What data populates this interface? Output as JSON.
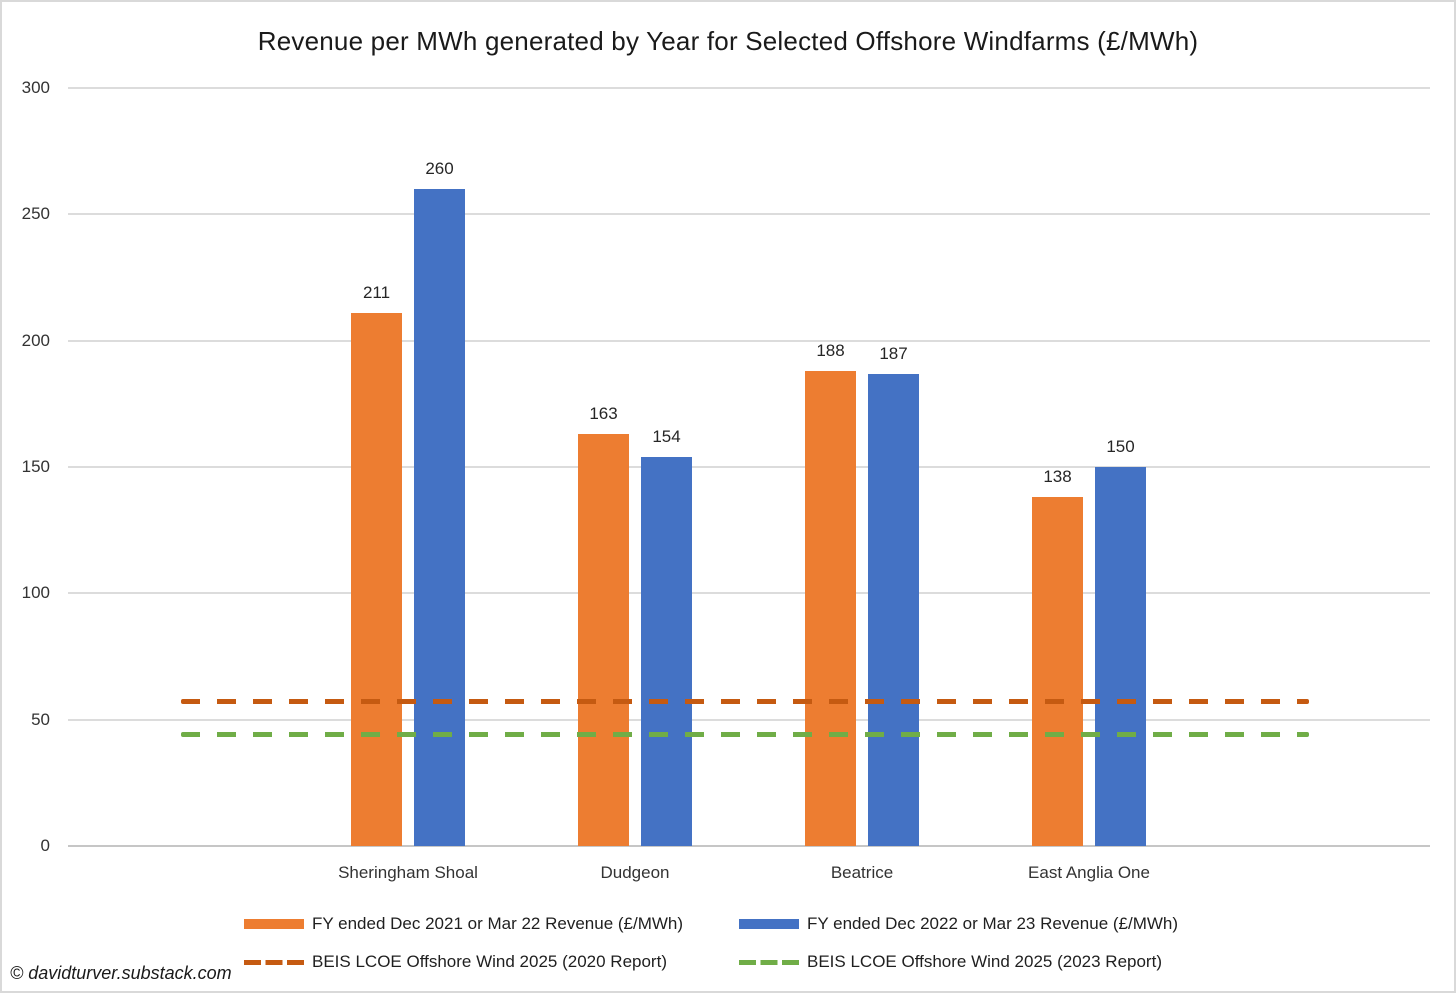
{
  "watermark": "© davidturver.substack.com",
  "chart_data": {
    "type": "bar",
    "title": "Revenue per MWh generated by Year for Selected Offshore Windfarms (£/MWh)",
    "categories": [
      "Sheringham Shoal",
      "Dudgeon",
      "Beatrice",
      "East Anglia One"
    ],
    "series": [
      {
        "name": "FY ended Dec 2021 or Mar 22 Revenue (£/MWh)",
        "color": "#ED7D31",
        "values": [
          211,
          163,
          188,
          138
        ]
      },
      {
        "name": "FY ended Dec 2022 or Mar 23 Revenue (£/MWh)",
        "color": "#4472C4",
        "values": [
          260,
          154,
          187,
          150
        ]
      }
    ],
    "reference_lines": [
      {
        "name": "BEIS LCOE Offshore Wind 2025 (2020 Report)",
        "color": "#C55A11",
        "value": 57,
        "style": "dashed"
      },
      {
        "name": "BEIS LCOE Offshore Wind 2025 (2023 Report)",
        "color": "#70AD47",
        "value": 44,
        "style": "dashed"
      }
    ],
    "ylim": [
      0,
      300
    ],
    "yticks": [
      0,
      50,
      100,
      150,
      200,
      250,
      300
    ],
    "xlabel": "",
    "ylabel": "",
    "grid": true,
    "legend_position": "bottom"
  }
}
